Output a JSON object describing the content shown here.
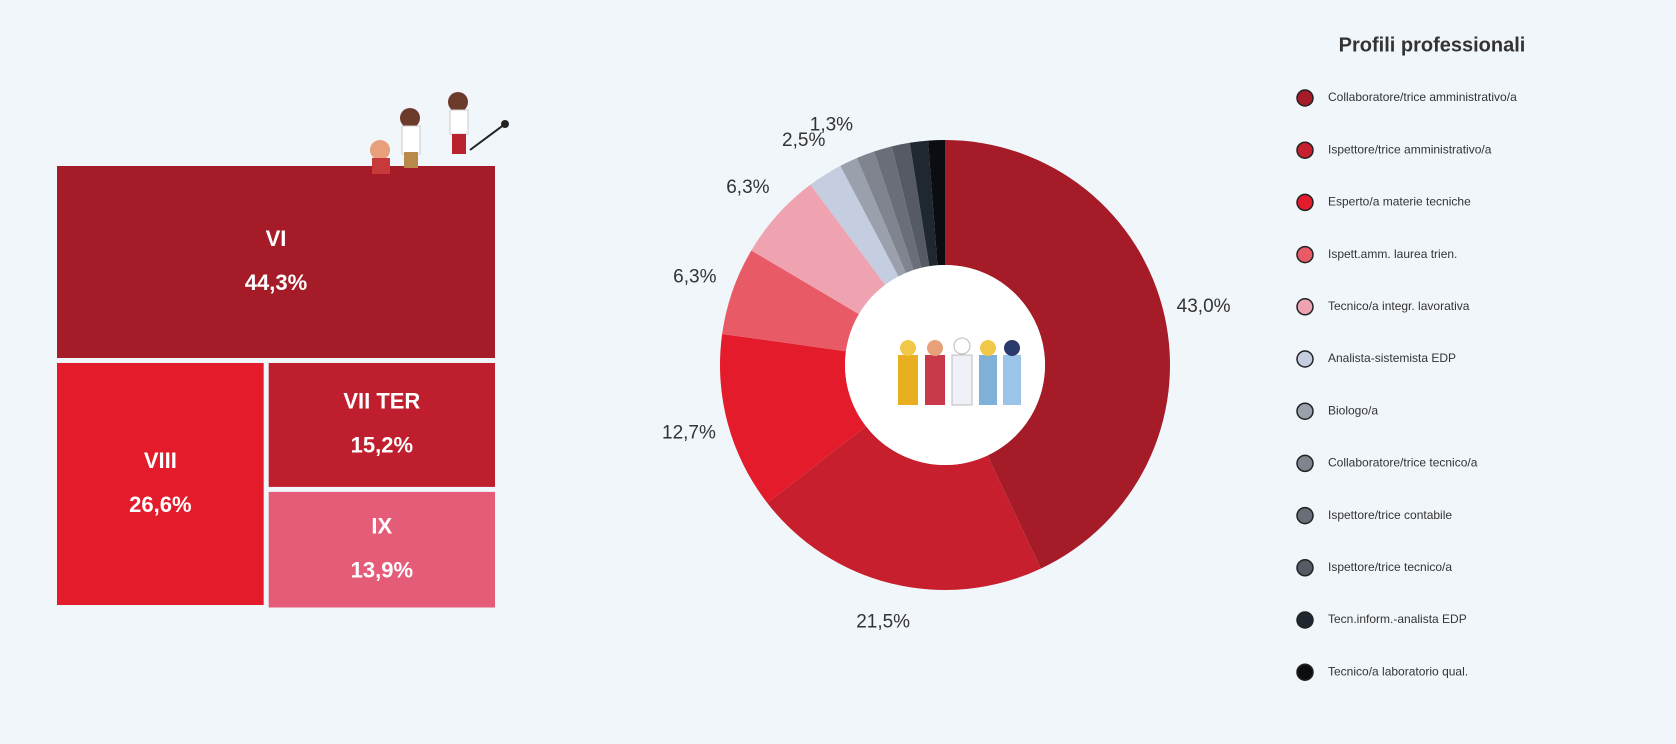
{
  "chart_data": [
    {
      "type": "treemap",
      "categories": [
        "VI",
        "VIII",
        "VII TER",
        "IX"
      ],
      "values": [
        44.3,
        26.6,
        15.2,
        13.9
      ],
      "value_labels": [
        "44,3%",
        "26,6%",
        "15,2%",
        "13,9%"
      ],
      "colors": [
        "#a51c28",
        "#e31b2b",
        "#be1e2d",
        "#e55c79"
      ]
    },
    {
      "type": "donut",
      "legend_title": "Profili professionali",
      "categories": [
        "Collaboratore/trice amministrativo/a",
        "Ispettore/trice amministrativo/a",
        "Esperto/a materie tecniche",
        "Ispett.amm. laurea trien.",
        "Tecnico/a integr. lavorativa",
        "Analista-sistemista EDP",
        "Biologo/a",
        "Collaboratore/trice tecnico/a",
        "Ispettore/trice contabile",
        "Ispettore/trice tecnico/a",
        "Tecn.inform.-analista EDP",
        "Tecnico/a laboratorio qual."
      ],
      "values": [
        43.0,
        21.5,
        12.7,
        6.3,
        6.3,
        2.5,
        1.3,
        1.3,
        1.3,
        1.3,
        1.3,
        1.2
      ],
      "value_labels": [
        "43,0%",
        "21,5%",
        "12,7%",
        "6,3%",
        "6,3%",
        "2,5%",
        "1,3%",
        null,
        null,
        null,
        null,
        null
      ],
      "colors": [
        "#a51c28",
        "#c71f2d",
        "#e31b2b",
        "#e85a66",
        "#efa3b0",
        "#c5cde0",
        "#9ba0ad",
        "#80848f",
        "#6a6e79",
        "#565a64",
        "#1f2730",
        "#0b0d10"
      ]
    }
  ]
}
